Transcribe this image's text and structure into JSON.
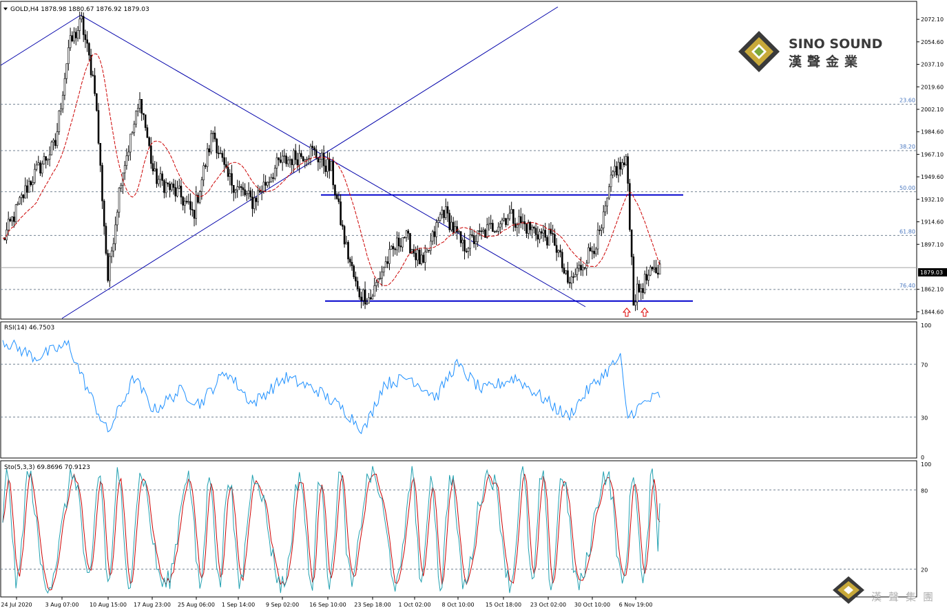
{
  "main": {
    "header": "GOLD,H4  1878.98 1880.67 1876.92 1879.03",
    "ticks": [
      "2072.10",
      "2054.60",
      "2037.10",
      "2019.60",
      "2002.10",
      "1984.60",
      "1967.10",
      "1949.60",
      "1932.10",
      "1914.60",
      "1897.10",
      "1862.10",
      "1844.60"
    ],
    "current_price": "1879.03",
    "fib_levels": [
      {
        "label": "23.60",
        "price": 2006
      },
      {
        "label": "38.20",
        "price": 1970
      },
      {
        "label": "50.00",
        "price": 1938
      },
      {
        "label": "61.80",
        "price": 1904
      },
      {
        "label": "76.40",
        "price": 1862
      }
    ]
  },
  "rsi": {
    "header": "RSI(14) 46.7503",
    "ticks": [
      "100",
      "70",
      "30",
      "0"
    ]
  },
  "sto": {
    "header": "Sto(5,3,3) 69.8696 70.9123",
    "ticks": [
      "100",
      "80",
      "20"
    ]
  },
  "xaxis": {
    "labels": [
      "24 Jul 2020",
      "3 Aug 07:00",
      "10 Aug 15:00",
      "17 Aug 23:00",
      "25 Aug 06:00",
      "1 Sep 14:00",
      "9 Sep 02:00",
      "16 Sep 10:00",
      "23 Sep 18:00",
      "1 Oct 02:00",
      "8 Oct 10:00",
      "15 Oct 18:00",
      "23 Oct 02:00",
      "30 Oct 10:00",
      "6 Nov 19:00"
    ]
  },
  "logo": {
    "name_en": "SINO SOUND",
    "name_cn": "漢聲金業",
    "watermark_cn": "漢聲集團"
  },
  "colors": {
    "candles": "#000000",
    "ma": "#cc0000",
    "trendline": "#0000aa",
    "support_line": "#0000cc",
    "rsi": "#1e90ff",
    "sto_main": "#20a0b0",
    "sto_signal": "#cc0000",
    "grid": "#708090",
    "arrow": "#dd0000"
  },
  "chart_data": [
    {
      "type": "candlestick",
      "title": "GOLD,H4",
      "ohlc_last": {
        "open": 1878.98,
        "high": 1880.67,
        "low": 1876.92,
        "close": 1879.03
      },
      "ylim": [
        1840,
        2085
      ],
      "x_labels": [
        "24 Jul 2020",
        "3 Aug 07:00",
        "10 Aug 15:00",
        "17 Aug 23:00",
        "25 Aug 06:00",
        "1 Sep 14:00",
        "9 Sep 02:00",
        "16 Sep 10:00",
        "23 Sep 18:00",
        "1 Oct 02:00",
        "8 Oct 10:00",
        "15 Oct 18:00",
        "23 Oct 02:00",
        "30 Oct 10:00",
        "6 Nov 19:00"
      ],
      "approx_close_path": [
        {
          "x": 0,
          "close": 1900
        },
        {
          "x": 0.04,
          "close": 1945
        },
        {
          "x": 0.08,
          "close": 1975
        },
        {
          "x": 0.1,
          "close": 2050
        },
        {
          "x": 0.12,
          "close": 2070
        },
        {
          "x": 0.14,
          "close": 2020
        },
        {
          "x": 0.16,
          "close": 1870
        },
        {
          "x": 0.18,
          "close": 1950
        },
        {
          "x": 0.21,
          "close": 2010
        },
        {
          "x": 0.23,
          "close": 1950
        },
        {
          "x": 0.27,
          "close": 1935
        },
        {
          "x": 0.29,
          "close": 1920
        },
        {
          "x": 0.32,
          "close": 1985
        },
        {
          "x": 0.34,
          "close": 1950
        },
        {
          "x": 0.38,
          "close": 1930
        },
        {
          "x": 0.42,
          "close": 1960
        },
        {
          "x": 0.47,
          "close": 1970
        },
        {
          "x": 0.5,
          "close": 1955
        },
        {
          "x": 0.52,
          "close": 1900
        },
        {
          "x": 0.54,
          "close": 1860
        },
        {
          "x": 0.56,
          "close": 1855
        },
        {
          "x": 0.58,
          "close": 1880
        },
        {
          "x": 0.61,
          "close": 1905
        },
        {
          "x": 0.64,
          "close": 1880
        },
        {
          "x": 0.67,
          "close": 1925
        },
        {
          "x": 0.7,
          "close": 1895
        },
        {
          "x": 0.73,
          "close": 1905
        },
        {
          "x": 0.77,
          "close": 1920
        },
        {
          "x": 0.8,
          "close": 1910
        },
        {
          "x": 0.84,
          "close": 1900
        },
        {
          "x": 0.86,
          "close": 1865
        },
        {
          "x": 0.88,
          "close": 1880
        },
        {
          "x": 0.91,
          "close": 1905
        },
        {
          "x": 0.93,
          "close": 1955
        },
        {
          "x": 0.95,
          "close": 1960
        },
        {
          "x": 0.96,
          "close": 1855
        },
        {
          "x": 0.98,
          "close": 1870
        },
        {
          "x": 1,
          "close": 1879
        }
      ],
      "horizontal_levels": [
        1935.5,
        1853
      ],
      "fibonacci": {
        "23.60": 2006,
        "38.20": 1970,
        "50.00": 1938,
        "61.80": 1904,
        "76.40": 1862
      }
    },
    {
      "type": "line",
      "title": "RSI(14) 46.7503",
      "ylim": [
        0,
        100
      ],
      "reference_levels": [
        70,
        30
      ],
      "last_value": 46.7503,
      "approx_path": [
        {
          "x": 0,
          "y": 88
        },
        {
          "x": 0.05,
          "y": 75
        },
        {
          "x": 0.1,
          "y": 85
        },
        {
          "x": 0.13,
          "y": 50
        },
        {
          "x": 0.16,
          "y": 18
        },
        {
          "x": 0.2,
          "y": 60
        },
        {
          "x": 0.23,
          "y": 35
        },
        {
          "x": 0.27,
          "y": 50
        },
        {
          "x": 0.3,
          "y": 40
        },
        {
          "x": 0.34,
          "y": 65
        },
        {
          "x": 0.38,
          "y": 40
        },
        {
          "x": 0.43,
          "y": 60
        },
        {
          "x": 0.48,
          "y": 50
        },
        {
          "x": 0.52,
          "y": 35
        },
        {
          "x": 0.55,
          "y": 20
        },
        {
          "x": 0.58,
          "y": 55
        },
        {
          "x": 0.62,
          "y": 60
        },
        {
          "x": 0.66,
          "y": 45
        },
        {
          "x": 0.69,
          "y": 70
        },
        {
          "x": 0.73,
          "y": 50
        },
        {
          "x": 0.78,
          "y": 60
        },
        {
          "x": 0.82,
          "y": 45
        },
        {
          "x": 0.86,
          "y": 30
        },
        {
          "x": 0.89,
          "y": 50
        },
        {
          "x": 0.92,
          "y": 65
        },
        {
          "x": 0.94,
          "y": 75
        },
        {
          "x": 0.95,
          "y": 30
        },
        {
          "x": 0.98,
          "y": 42
        },
        {
          "x": 1,
          "y": 46.75
        }
      ]
    },
    {
      "type": "line",
      "title": "Sto(5,3,3) 69.8696 70.9123",
      "ylim": [
        0,
        100
      ],
      "reference_levels": [
        80,
        20
      ],
      "last_main": 69.8696,
      "last_signal": 70.9123
    }
  ]
}
